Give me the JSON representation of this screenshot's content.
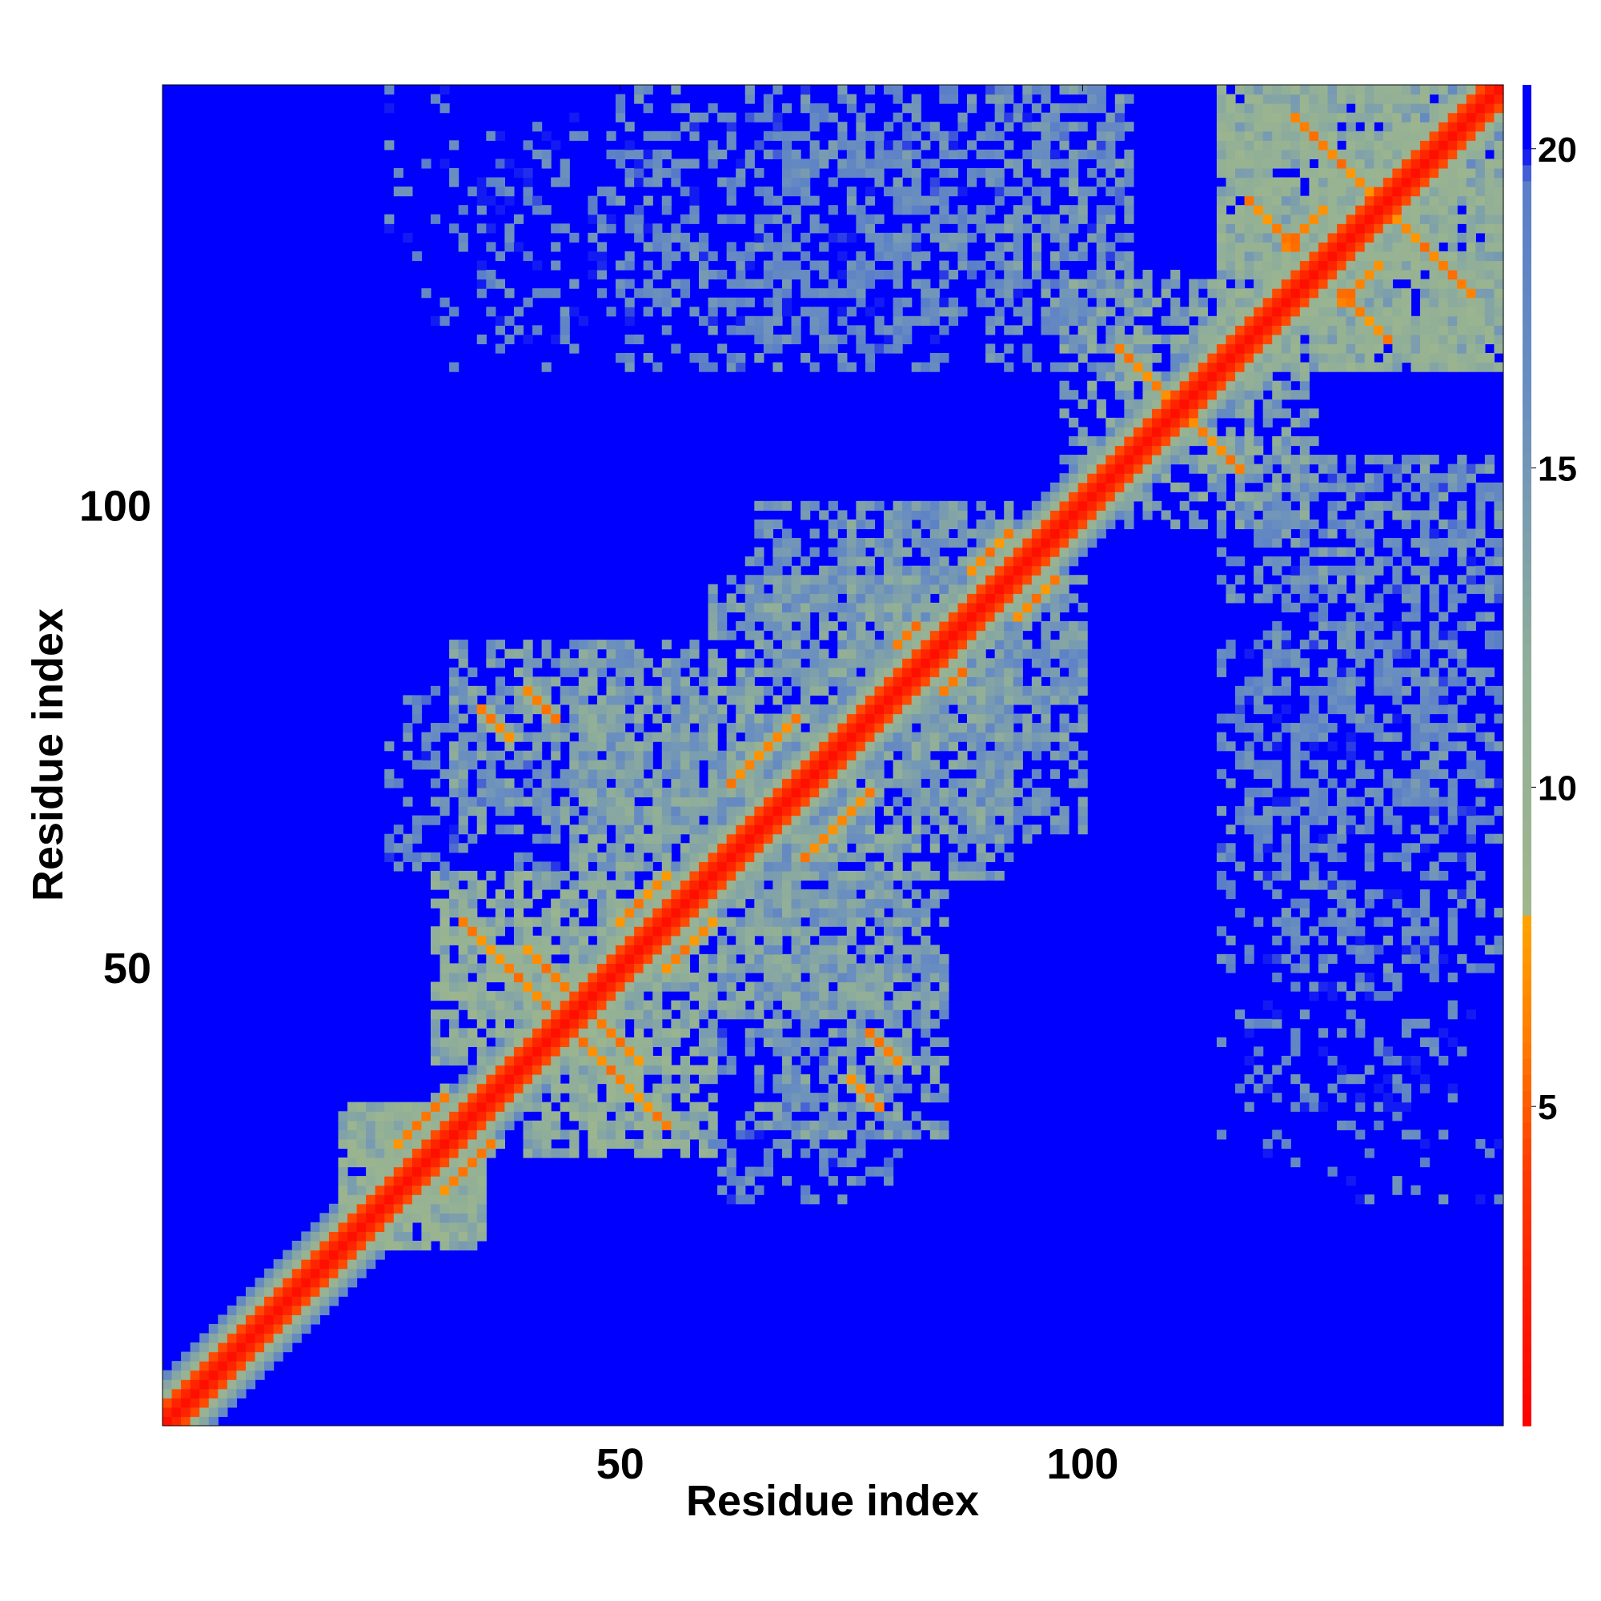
{
  "chart_data": {
    "type": "heatmap",
    "title": "",
    "xlabel": "Residue index",
    "ylabel": "Residue index",
    "n_residues": 145,
    "xlim": [
      1,
      145
    ],
    "ylim": [
      1,
      145
    ],
    "x_ticks": [
      50,
      100
    ],
    "y_ticks": [
      50,
      100
    ],
    "x_tick_labels": [
      "50",
      "100"
    ],
    "y_tick_labels": [
      "50",
      "100"
    ],
    "value_range": [
      0,
      21
    ],
    "colorbar": {
      "ticks": [
        5,
        10,
        15,
        20
      ],
      "tick_labels": [
        "5",
        "10",
        "15",
        "20"
      ],
      "range": [
        0,
        21
      ],
      "stops": [
        {
          "value": 0,
          "color": "#ff0000"
        },
        {
          "value": 4,
          "color": "#ff3a00"
        },
        {
          "value": 6,
          "color": "#ff7a00"
        },
        {
          "value": 8,
          "color": "#ffa500"
        },
        {
          "value": 8.01,
          "color": "#9fb78c"
        },
        {
          "value": 12,
          "color": "#8fae9a"
        },
        {
          "value": 16,
          "color": "#6a8fbf"
        },
        {
          "value": 19.5,
          "color": "#5a7ec8"
        },
        {
          "value": 20.01,
          "color": "#0000ff"
        },
        {
          "value": 21,
          "color": "#0000ff"
        }
      ]
    },
    "background_value": 21,
    "diagonal_band": [
      {
        "offset": 0,
        "value": 1
      },
      {
        "offset": 1,
        "value": 2.5
      },
      {
        "offset": 2,
        "value": 4.5
      },
      {
        "offset": 3,
        "value": 10
      },
      {
        "offset": 4,
        "value": 13
      },
      {
        "offset": 5,
        "value": 17
      }
    ],
    "contact_segments": [
      {
        "start_a": 33,
        "start_b": 55,
        "length": 12,
        "step_b": -1,
        "value": 6.5
      },
      {
        "start_a": 40,
        "start_b": 52,
        "length": 6,
        "step_b": -1,
        "value": 6.5
      },
      {
        "start_a": 104,
        "start_b": 117,
        "length": 8,
        "step_b": -1,
        "value": 6.5
      },
      {
        "start_a": 123,
        "start_b": 142,
        "length": 10,
        "step_b": -1,
        "value": 6.5
      },
      {
        "start_a": 118,
        "start_b": 133,
        "length": 6,
        "step_b": -1,
        "value": 6.5
      },
      {
        "start_a": 122,
        "start_b": 128,
        "length": 5,
        "step_b": 1,
        "value": 6.5
      },
      {
        "start_a": 50,
        "start_b": 55,
        "length": 6,
        "step_b": 1,
        "value": 6.5
      },
      {
        "start_a": 62,
        "start_b": 70,
        "length": 8,
        "step_b": 1,
        "value": 6.5
      },
      {
        "start_a": 26,
        "start_b": 31,
        "length": 6,
        "step_b": 1,
        "value": 6.5
      },
      {
        "start_a": 88,
        "start_b": 93,
        "length": 5,
        "step_b": 1,
        "value": 6.5
      },
      {
        "start_a": 35,
        "start_b": 78,
        "length": 4,
        "step_b": -1,
        "value": 6.5
      },
      {
        "start_a": 77,
        "start_b": 43,
        "length": 4,
        "step_b": -1,
        "value": 6.5
      },
      {
        "start_a": 85,
        "start_b": 80,
        "length": 3,
        "step_b": 1,
        "value": 6.5
      }
    ],
    "contact_regions": [
      {
        "a": [
          30,
          50
        ],
        "b": [
          40,
          60
        ],
        "value": 12,
        "density": 0.75
      },
      {
        "a": [
          32,
          52
        ],
        "b": [
          65,
          85
        ],
        "value": 15,
        "density": 0.5
      },
      {
        "a": [
          45,
          65
        ],
        "b": [
          58,
          80
        ],
        "value": 14,
        "density": 0.6
      },
      {
        "a": [
          60,
          82
        ],
        "b": [
          70,
          92
        ],
        "value": 14,
        "density": 0.6
      },
      {
        "a": [
          62,
          85
        ],
        "b": [
          45,
          60
        ],
        "value": 15,
        "density": 0.45
      },
      {
        "a": [
          80,
          98
        ],
        "b": [
          75,
          100
        ],
        "value": 15,
        "density": 0.4
      },
      {
        "a": [
          64,
          90
        ],
        "b": [
          80,
          100
        ],
        "value": 16,
        "density": 0.35
      },
      {
        "a": [
          80,
          105
        ],
        "b": [
          120,
          145
        ],
        "value": 17,
        "density": 0.35
      },
      {
        "a": [
          35,
          55
        ],
        "b": [
          118,
          140
        ],
        "value": 18,
        "density": 0.2
      },
      {
        "a": [
          62,
          82
        ],
        "b": [
          118,
          140
        ],
        "value": 18,
        "density": 0.3
      },
      {
        "a": [
          115,
          145
        ],
        "b": [
          115,
          145
        ],
        "value": 12,
        "density": 0.75
      },
      {
        "a": [
          98,
          118
        ],
        "b": [
          105,
          125
        ],
        "value": 14,
        "density": 0.5
      },
      {
        "a": [
          115,
          145
        ],
        "b": [
          50,
          85
        ],
        "value": 17,
        "density": 0.3
      },
      {
        "a": [
          115,
          145
        ],
        "b": [
          90,
          105
        ],
        "value": 16,
        "density": 0.35
      },
      {
        "a": [
          115,
          145
        ],
        "b": [
          25,
          50
        ],
        "value": 18,
        "density": 0.1
      },
      {
        "a": [
          20,
          35
        ],
        "b": [
          20,
          35
        ],
        "value": 12,
        "density": 0.7
      },
      {
        "a": [
          60,
          80
        ],
        "b": [
          25,
          45
        ],
        "value": 17,
        "density": 0.3
      },
      {
        "a": [
          88,
          100
        ],
        "b": [
          65,
          80
        ],
        "value": 16,
        "density": 0.3
      }
    ]
  }
}
